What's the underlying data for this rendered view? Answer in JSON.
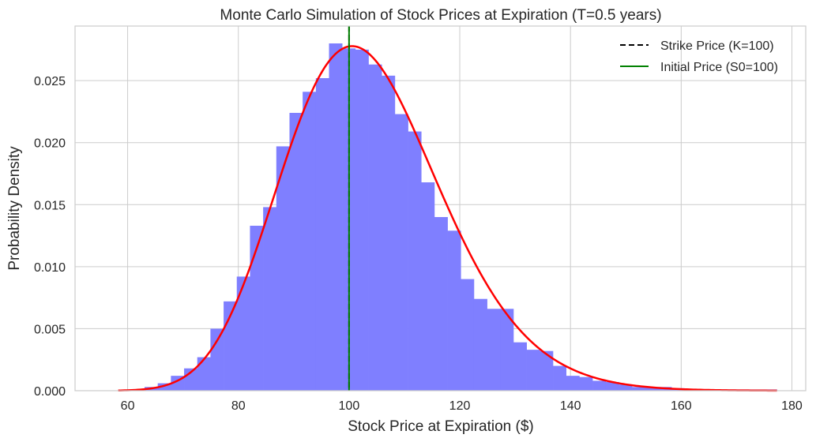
{
  "chart_data": {
    "type": "bar",
    "title": "Monte Carlo Simulation of Stock Prices at Expiration (T=0.5 years)",
    "xlabel": "Stock Price at Expiration ($)",
    "ylabel": "Probability Density",
    "xlim": [
      50.5,
      182.5
    ],
    "ylim": [
      0,
      0.0294
    ],
    "x_ticks": [
      60,
      80,
      100,
      120,
      140,
      160,
      180
    ],
    "y_ticks": [
      0.0,
      0.005,
      0.01,
      0.015,
      0.02,
      0.025
    ],
    "x_tick_labels": [
      "60",
      "80",
      "100",
      "120",
      "140",
      "160",
      "180"
    ],
    "y_tick_labels": [
      "0.000",
      "0.005",
      "0.010",
      "0.015",
      "0.020",
      "0.025"
    ],
    "grid": true,
    "legend_position": "top-right",
    "histogram": {
      "color": "#7f7fff",
      "bin_edges": [
        58.3,
        60.68,
        63.06,
        65.44,
        67.82,
        70.2,
        72.58,
        74.96,
        77.34,
        79.72,
        82.1,
        84.48,
        86.86,
        89.24,
        91.62,
        94.0,
        96.38,
        98.76,
        101.14,
        103.52,
        105.9,
        108.28,
        110.66,
        113.04,
        115.42,
        117.8,
        120.18,
        122.56,
        124.94,
        127.32,
        129.7,
        132.08,
        134.46,
        136.84,
        139.22,
        141.6,
        143.98,
        146.36,
        148.74,
        151.12,
        153.5,
        155.88,
        158.26,
        160.64,
        163.02,
        165.4,
        167.78,
        170.16,
        172.54,
        174.92,
        177.3
      ],
      "densities": [
        0.0,
        0.0,
        0.0003,
        0.0006,
        0.0012,
        0.0018,
        0.0027,
        0.005,
        0.0072,
        0.0092,
        0.0133,
        0.0148,
        0.0197,
        0.0224,
        0.0241,
        0.0252,
        0.028,
        0.0276,
        0.0275,
        0.0263,
        0.0254,
        0.0223,
        0.0209,
        0.0168,
        0.014,
        0.0129,
        0.009,
        0.0074,
        0.0066,
        0.0066,
        0.0039,
        0.0033,
        0.0032,
        0.002,
        0.0012,
        0.0011,
        0.0008,
        0.0007,
        0.0005,
        0.0003,
        0.0003,
        0.0003,
        0.0002,
        0.0001,
        0.0001,
        0.0001,
        0.0001,
        0.0001,
        0.0001,
        0.0001
      ]
    },
    "density_curve": {
      "color": "#ff0000",
      "x_range": [
        58.3,
        177.3
      ],
      "lognormal_mu": 4.6306,
      "lognormal_sigma": 0.1414
    },
    "vlines": [
      {
        "name": "Strike Price (K=100)",
        "x": 100,
        "color": "#000000",
        "style": "dashed"
      },
      {
        "name": "Initial Price (S0=100)",
        "x": 100,
        "color": "#008000",
        "style": "solid"
      }
    ]
  }
}
